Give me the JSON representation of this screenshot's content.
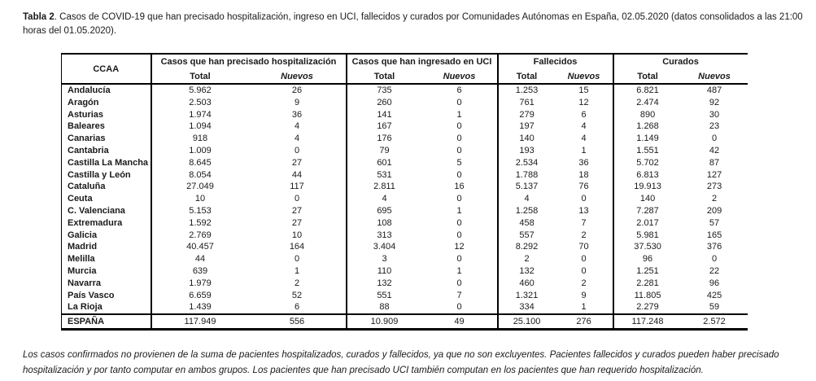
{
  "colors": {
    "border": "#000000",
    "text": "#1a1a1a",
    "background": "#ffffff"
  },
  "title": {
    "label": "Tabla 2",
    "text": ". Casos de COVID-19 que han precisado hospitalización, ingreso en UCI, fallecidos y curados por Comunidades Autónomas en España, 02.05.2020 (datos consolidados a las 21:00 horas del 01.05.2020)."
  },
  "table": {
    "ccaa_header": "CCAA",
    "groups": [
      {
        "label": "Casos que han precisado hospitalización"
      },
      {
        "label": "Casos que han ingresado en UCI"
      },
      {
        "label": "Fallecidos"
      },
      {
        "label": "Curados"
      }
    ],
    "subheaders": {
      "total": "Total",
      "nuevos": "Nuevos"
    },
    "rows": [
      [
        "Andalucía",
        "5.962",
        "26",
        "735",
        "6",
        "1.253",
        "15",
        "6.821",
        "487"
      ],
      [
        "Aragón",
        "2.503",
        "9",
        "260",
        "0",
        "761",
        "12",
        "2.474",
        "92"
      ],
      [
        "Asturias",
        "1.974",
        "36",
        "141",
        "1",
        "279",
        "6",
        "890",
        "30"
      ],
      [
        "Baleares",
        "1.094",
        "4",
        "167",
        "0",
        "197",
        "4",
        "1.268",
        "23"
      ],
      [
        "Canarias",
        "918",
        "4",
        "176",
        "0",
        "140",
        "4",
        "1.149",
        "0"
      ],
      [
        "Cantabria",
        "1.009",
        "0",
        "79",
        "0",
        "193",
        "1",
        "1.551",
        "42"
      ],
      [
        "Castilla La Mancha",
        "8.645",
        "27",
        "601",
        "5",
        "2.534",
        "36",
        "5.702",
        "87"
      ],
      [
        "Castilla y León",
        "8.054",
        "44",
        "531",
        "0",
        "1.788",
        "18",
        "6.813",
        "127"
      ],
      [
        "Cataluña",
        "27.049",
        "117",
        "2.811",
        "16",
        "5.137",
        "76",
        "19.913",
        "273"
      ],
      [
        "Ceuta",
        "10",
        "0",
        "4",
        "0",
        "4",
        "0",
        "140",
        "2"
      ],
      [
        "C. Valenciana",
        "5.153",
        "27",
        "695",
        "1",
        "1.258",
        "13",
        "7.287",
        "209"
      ],
      [
        "Extremadura",
        "1.592",
        "27",
        "108",
        "0",
        "458",
        "7",
        "2.017",
        "57"
      ],
      [
        "Galicia",
        "2.769",
        "10",
        "313",
        "0",
        "557",
        "2",
        "5.981",
        "165"
      ],
      [
        "Madrid",
        "40.457",
        "164",
        "3.404",
        "12",
        "8.292",
        "70",
        "37.530",
        "376"
      ],
      [
        "Melilla",
        "44",
        "0",
        "3",
        "0",
        "2",
        "0",
        "96",
        "0"
      ],
      [
        "Murcia",
        "639",
        "1",
        "110",
        "1",
        "132",
        "0",
        "1.251",
        "22"
      ],
      [
        "Navarra",
        "1.979",
        "2",
        "132",
        "0",
        "460",
        "2",
        "2.281",
        "96"
      ],
      [
        "País Vasco",
        "6.659",
        "52",
        "551",
        "7",
        "1.321",
        "9",
        "11.805",
        "425"
      ],
      [
        "La Rioja",
        "1.439",
        "6",
        "88",
        "0",
        "334",
        "1",
        "2.279",
        "59"
      ]
    ],
    "total_row": [
      "ESPAÑA",
      "117.949",
      "556",
      "10.909",
      "49",
      "25.100",
      "276",
      "117.248",
      "2.572"
    ]
  },
  "footnote": "Los casos confirmados no provienen de la suma de pacientes hospitalizados, curados y fallecidos, ya que no son excluyentes. Pacientes fallecidos y curados pueden haber precisado hospitalización y por tanto computar en ambos grupos. Los pacientes que han precisado UCI también computan en los pacientes que han requerido hospitalización."
}
